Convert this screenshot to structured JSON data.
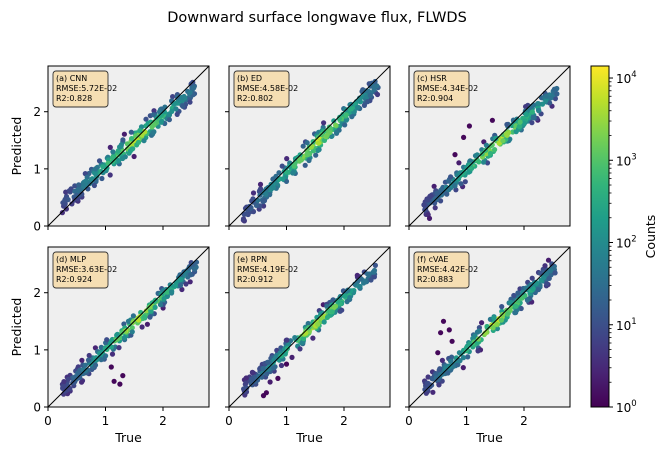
{
  "figure": {
    "title": "Downward surface longwave flux, FLWDS"
  },
  "colors": {
    "panel_background": "#efefef",
    "annotation_box_fill": "#f5deb3",
    "identity_line": "#000000",
    "colormap": "viridis"
  },
  "chart_data": [
    {
      "type": "heatmap",
      "subtype": "hexbin-scatter",
      "panel_label": "(a) CNN",
      "model": "CNN",
      "rmse_text": "RMSE:5.72E-02",
      "r2_text": "R2:0.828",
      "xlabel": "",
      "ylabel": "Predicted",
      "xlim": [
        0,
        2.8
      ],
      "ylim": [
        0,
        2.8
      ],
      "xticks": [],
      "yticks": [
        0,
        1,
        2
      ],
      "data_extent": {
        "x": [
          0.25,
          2.55
        ],
        "y": [
          0.4,
          2.4
        ]
      },
      "spread": 0.1,
      "outliers": [],
      "identity_line": true
    },
    {
      "type": "heatmap",
      "subtype": "hexbin-scatter",
      "panel_label": "(b) ED",
      "model": "ED",
      "rmse_text": "RMSE:4.58E-02",
      "r2_text": "R2:0.802",
      "xlabel": "",
      "ylabel": "",
      "xlim": [
        0,
        2.8
      ],
      "ylim": [
        0,
        2.8
      ],
      "xticks": [],
      "yticks": [],
      "data_extent": {
        "x": [
          0.25,
          2.6
        ],
        "y": [
          0.2,
          2.5
        ]
      },
      "spread": 0.1,
      "outliers": [],
      "identity_line": true
    },
    {
      "type": "heatmap",
      "subtype": "hexbin-scatter",
      "panel_label": "(c) HSR",
      "model": "HSR",
      "rmse_text": "RMSE:4.34E-02",
      "r2_text": "R2:0.904",
      "xlabel": "",
      "ylabel": "",
      "xlim": [
        0,
        2.8
      ],
      "ylim": [
        0,
        2.8
      ],
      "xticks": [],
      "yticks": [],
      "data_extent": {
        "x": [
          0.25,
          2.6
        ],
        "y": [
          0.3,
          2.4
        ]
      },
      "spread": 0.09,
      "outliers": [
        [
          0.95,
          1.55
        ],
        [
          1.05,
          1.75
        ],
        [
          0.8,
          1.25
        ],
        [
          1.45,
          1.85
        ]
      ],
      "identity_line": true
    },
    {
      "type": "heatmap",
      "subtype": "hexbin-scatter",
      "panel_label": "(d) MLP",
      "model": "MLP",
      "rmse_text": "RMSE:3.63E-02",
      "r2_text": "R2:0.924",
      "xlabel": "True",
      "ylabel": "Predicted",
      "xlim": [
        0,
        2.8
      ],
      "ylim": [
        0,
        2.8
      ],
      "xticks": [
        0,
        1,
        2
      ],
      "yticks": [
        0,
        1,
        2
      ],
      "data_extent": {
        "x": [
          0.25,
          2.6
        ],
        "y": [
          0.3,
          2.5
        ]
      },
      "spread": 0.08,
      "outliers": [
        [
          1.15,
          0.45
        ],
        [
          1.25,
          0.4
        ],
        [
          1.3,
          0.55
        ],
        [
          1.1,
          0.7
        ]
      ],
      "identity_line": true
    },
    {
      "type": "heatmap",
      "subtype": "hexbin-scatter",
      "panel_label": "(e) RPN",
      "model": "RPN",
      "rmse_text": "RMSE:4.19E-02",
      "r2_text": "R2:0.912",
      "xlabel": "True",
      "ylabel": "",
      "xlim": [
        0,
        2.8
      ],
      "ylim": [
        0,
        2.8
      ],
      "xticks": [
        0,
        1,
        2
      ],
      "yticks": [],
      "data_extent": {
        "x": [
          0.25,
          2.55
        ],
        "y": [
          0.3,
          2.4
        ]
      },
      "spread": 0.08,
      "outliers": [
        [
          0.6,
          0.2
        ],
        [
          0.65,
          0.25
        ],
        [
          0.85,
          0.5
        ],
        [
          1.0,
          0.75
        ]
      ],
      "identity_line": true
    },
    {
      "type": "heatmap",
      "subtype": "hexbin-scatter",
      "panel_label": "(f) cVAE",
      "model": "cVAE",
      "rmse_text": "RMSE:4.42E-02",
      "r2_text": "R2:0.883",
      "xlabel": "True",
      "ylabel": "",
      "xlim": [
        0,
        2.8
      ],
      "ylim": [
        0,
        2.8
      ],
      "xticks": [
        0,
        1,
        2
      ],
      "yticks": [],
      "data_extent": {
        "x": [
          0.25,
          2.55
        ],
        "y": [
          0.3,
          2.45
        ]
      },
      "spread": 0.09,
      "outliers": [
        [
          0.55,
          1.3
        ],
        [
          0.6,
          1.5
        ],
        [
          0.7,
          1.35
        ],
        [
          0.75,
          1.15
        ],
        [
          0.5,
          0.95
        ]
      ],
      "identity_line": true
    },
    {
      "type": "colorbar",
      "label": "Counts",
      "scale": "log",
      "colormap": "viridis",
      "range": [
        1,
        14000
      ],
      "ticks": [
        1,
        10,
        100,
        1000,
        10000
      ],
      "tick_labels": [
        {
          "base": "10",
          "exp": "0"
        },
        {
          "base": "10",
          "exp": "1"
        },
        {
          "base": "10",
          "exp": "2"
        },
        {
          "base": "10",
          "exp": "3"
        },
        {
          "base": "10",
          "exp": "4"
        }
      ]
    }
  ]
}
